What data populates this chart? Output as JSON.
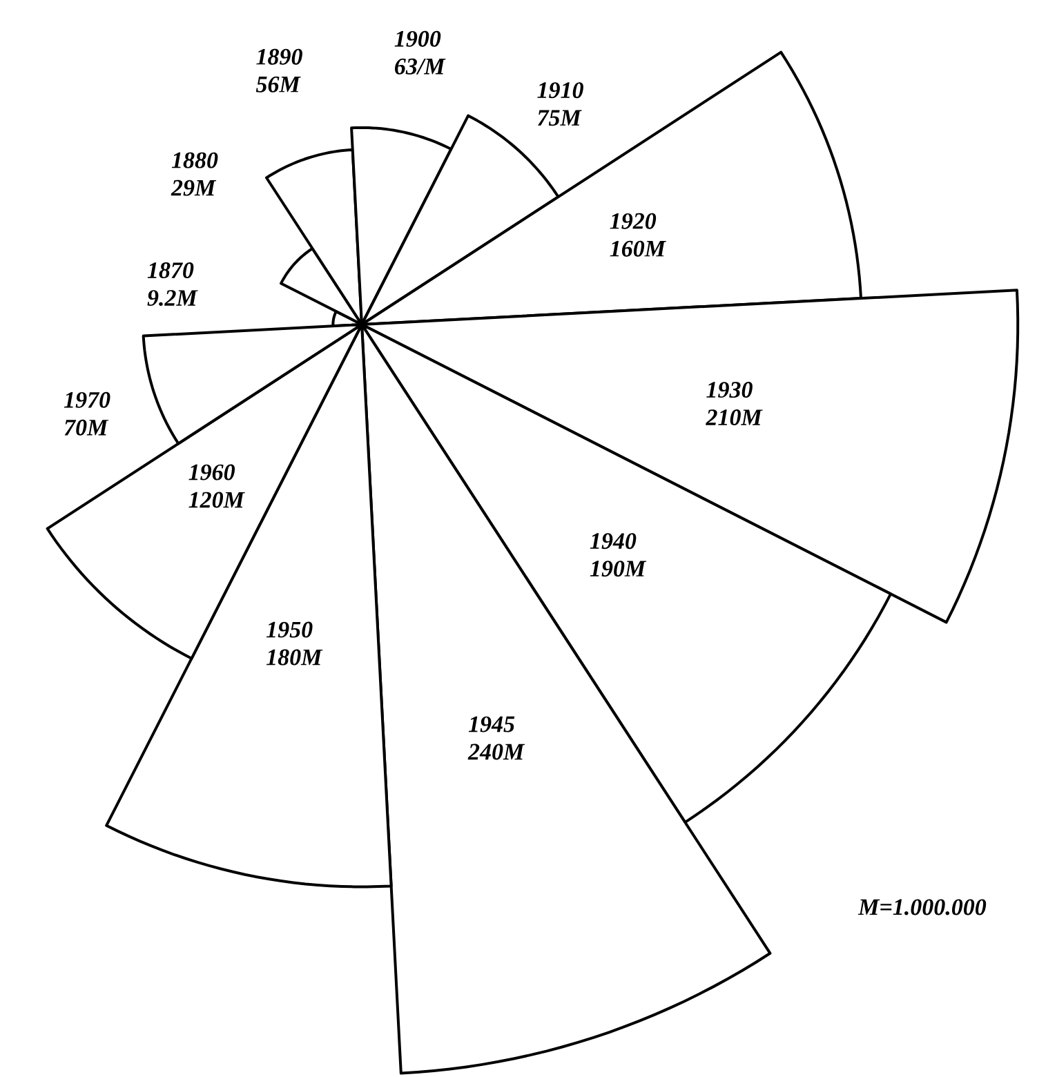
{
  "chart_data": {
    "type": "other",
    "categories": [
      "1870",
      "1880",
      "1890",
      "1900",
      "1910",
      "1920",
      "1930",
      "1940",
      "1945",
      "1950",
      "1960",
      "1970"
    ],
    "values": [
      9.2,
      29,
      56,
      63,
      75,
      160,
      210,
      190,
      240,
      180,
      120,
      70
    ],
    "value_labels": [
      "9.2M",
      "29M",
      "56M",
      "63/M",
      "75M",
      "160M",
      "210M",
      "190M",
      "240M",
      "180M",
      "120M",
      "70M"
    ],
    "annotations": [
      "M=1.000.000"
    ]
  }
}
